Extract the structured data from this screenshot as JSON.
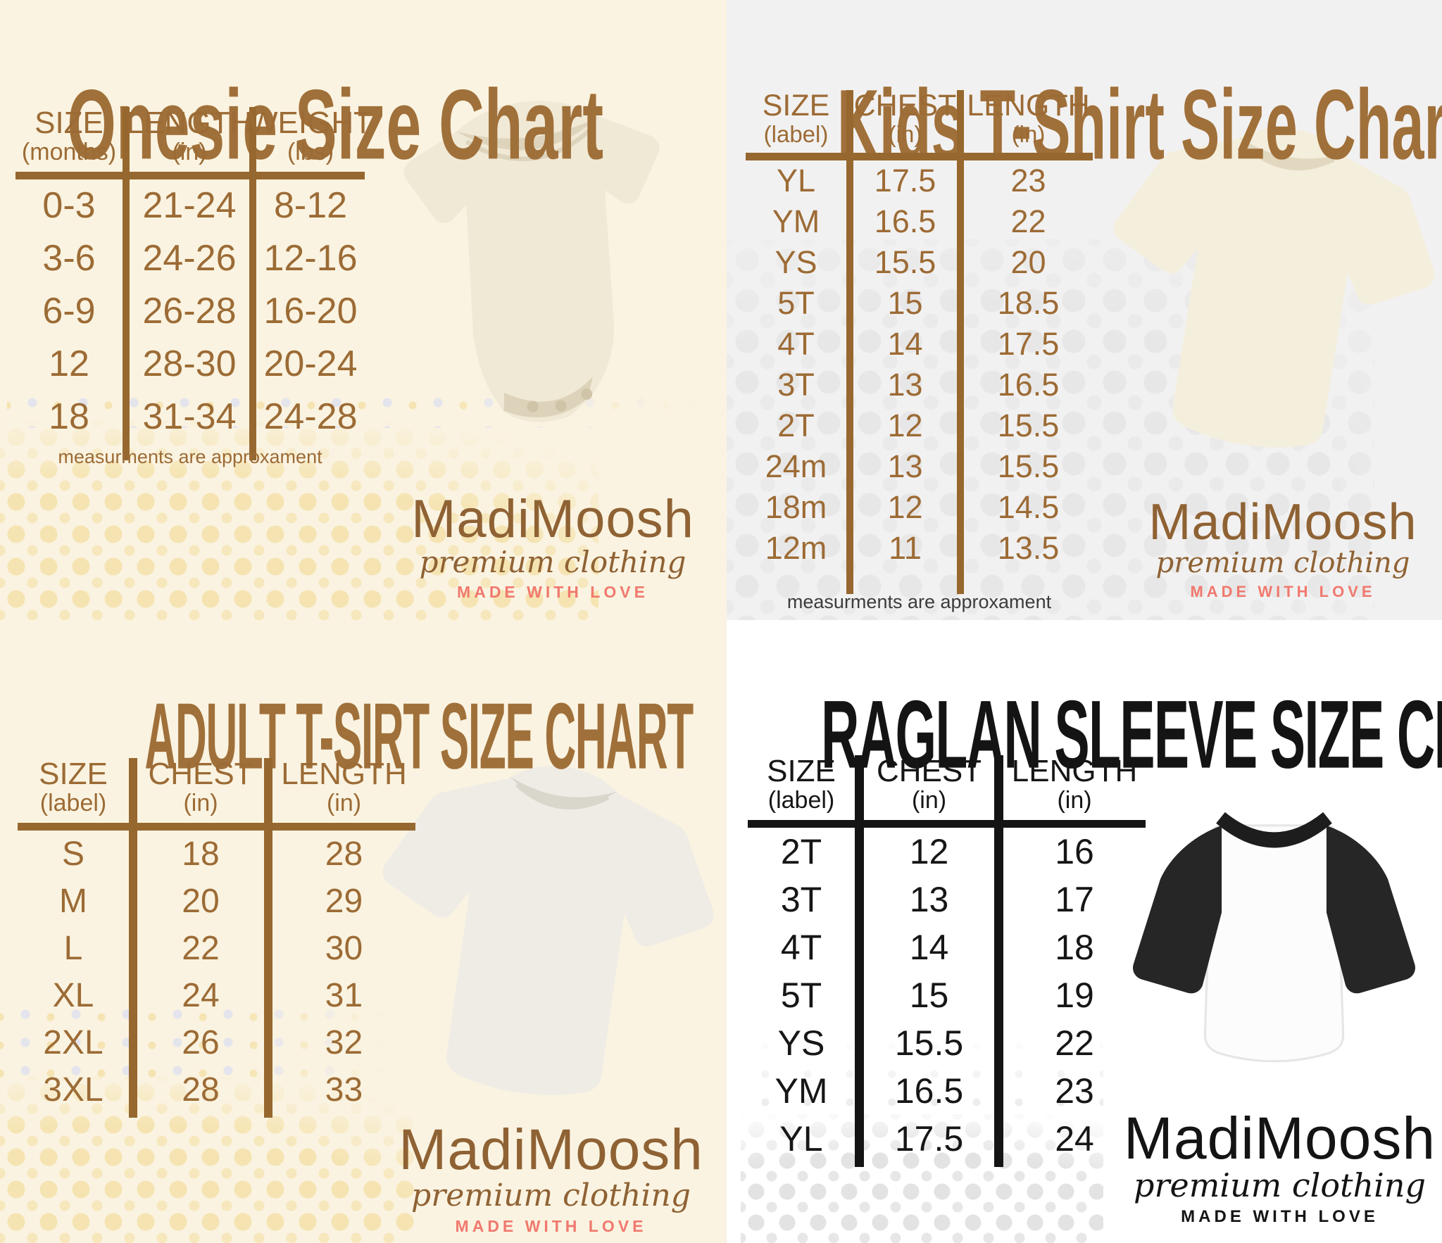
{
  "brand": {
    "name": "MadiMoosh",
    "subtitle": "premium clothing",
    "tagline": "MADE WITH LOVE"
  },
  "colors": {
    "brown_text": "#9c6b35",
    "brown_title": "#a0703a",
    "brown_logo": "#8f6234",
    "salmon_tagline": "#f0796e",
    "black": "#141414",
    "cream_background": "#faf3e1",
    "gray_background": "#f2f1f1",
    "white_background": "#ffffff",
    "tan_dot": "#f5e4b2",
    "gray_dot": "#e3e3e3"
  },
  "chart_data": [
    {
      "type": "table",
      "id": "onesie",
      "title": "Onesie Size Chart",
      "accent": "#9c6b35",
      "columns": [
        {
          "label": "SIZE",
          "unit": "(months)"
        },
        {
          "label": "LENGTH",
          "unit": "(in)"
        },
        {
          "label": "WEIGHT",
          "unit": "(lbs)"
        }
      ],
      "rows": [
        [
          "0-3",
          "21-24",
          "8-12"
        ],
        [
          "3-6",
          "24-26",
          "12-16"
        ],
        [
          "6-9",
          "26-28",
          "16-20"
        ],
        [
          "12",
          "28-30",
          "20-24"
        ],
        [
          "18",
          "31-34",
          "24-28"
        ]
      ],
      "note": "measurments are approxament"
    },
    {
      "type": "table",
      "id": "kids-tshirt",
      "title": "Kids T-Shirt Size Chart",
      "accent": "#9c6b35",
      "columns": [
        {
          "label": "SIZE",
          "unit": "(label)"
        },
        {
          "label": "CHEST",
          "unit": "(in)"
        },
        {
          "label": "LENGTH",
          "unit": "(in)"
        }
      ],
      "rows": [
        [
          "YL",
          "17.5",
          "23"
        ],
        [
          "YM",
          "16.5",
          "22"
        ],
        [
          "YS",
          "15.5",
          "20"
        ],
        [
          "5T",
          "15",
          "18.5"
        ],
        [
          "4T",
          "14",
          "17.5"
        ],
        [
          "3T",
          "13",
          "16.5"
        ],
        [
          "2T",
          "12",
          "15.5"
        ],
        [
          "24m",
          "13",
          "15.5"
        ],
        [
          "18m",
          "12",
          "14.5"
        ],
        [
          "12m",
          "11",
          "13.5"
        ]
      ],
      "note": "measurments are approxament"
    },
    {
      "type": "table",
      "id": "adult-tshirt",
      "title": "ADULT T-SIRT SIZE CHART",
      "accent": "#9c6b35",
      "columns": [
        {
          "label": "SIZE",
          "unit": "(label)"
        },
        {
          "label": "CHEST",
          "unit": "(in)"
        },
        {
          "label": "LENGTH",
          "unit": "(in)"
        }
      ],
      "rows": [
        [
          "S",
          "18",
          "28"
        ],
        [
          "M",
          "20",
          "29"
        ],
        [
          "L",
          "22",
          "30"
        ],
        [
          "XL",
          "24",
          "31"
        ],
        [
          "2XL",
          "26",
          "32"
        ],
        [
          "3XL",
          "28",
          "33"
        ]
      ],
      "note": ""
    },
    {
      "type": "table",
      "id": "raglan-sleeve",
      "title": "RAGLAN SLEEVE SIZE CHART",
      "accent": "#141414",
      "columns": [
        {
          "label": "SIZE",
          "unit": "(label)"
        },
        {
          "label": "CHEST",
          "unit": "(in)"
        },
        {
          "label": "LENGTH",
          "unit": "(in)"
        }
      ],
      "rows": [
        [
          "2T",
          "12",
          "16"
        ],
        [
          "3T",
          "13",
          "17"
        ],
        [
          "4T",
          "14",
          "18"
        ],
        [
          "5T",
          "15",
          "19"
        ],
        [
          "YS",
          "15.5",
          "22"
        ],
        [
          "YM",
          "16.5",
          "23"
        ],
        [
          "YL",
          "17.5",
          "24"
        ]
      ],
      "note": ""
    }
  ]
}
